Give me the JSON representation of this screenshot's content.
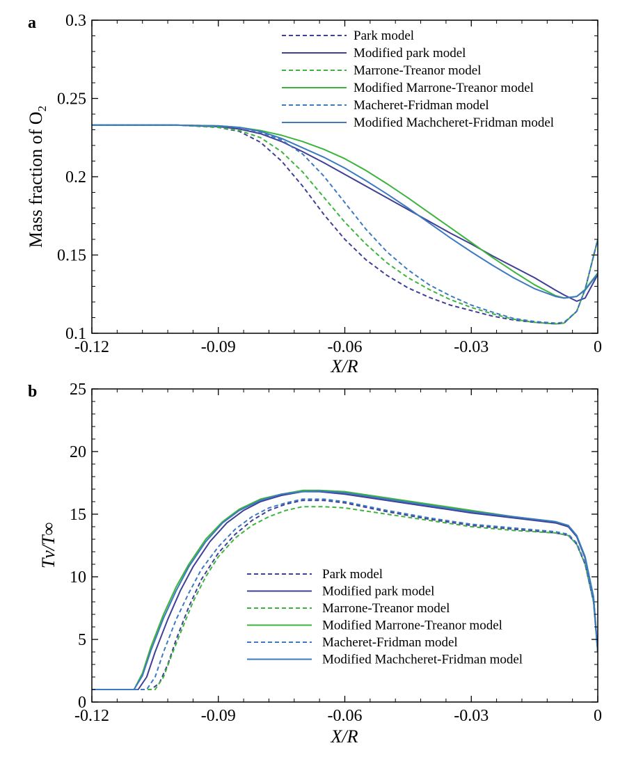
{
  "series_styles": [
    {
      "color": "#3f3f96",
      "dashed": true
    },
    {
      "color": "#3f3f96",
      "dashed": false
    },
    {
      "color": "#3cb43c",
      "dashed": true
    },
    {
      "color": "#3cb43c",
      "dashed": false
    },
    {
      "color": "#3d79c2",
      "dashed": true
    },
    {
      "color": "#3d79c2",
      "dashed": false
    }
  ],
  "chart_data": [
    {
      "type": "line",
      "panel": "a",
      "xlabel": "X/R",
      "ylabel": "Mass fraction of O",
      "ylabel_subscript": "2",
      "xlim": [
        -0.12,
        0
      ],
      "ylim": [
        0.1,
        0.3
      ],
      "xticks": [
        -0.12,
        -0.09,
        -0.06,
        -0.03,
        0
      ],
      "xtick_labels": [
        "-0.12",
        "-0.09",
        "-0.06",
        "-0.03",
        "0"
      ],
      "yticks": [
        0.1,
        0.15,
        0.2,
        0.25,
        0.3
      ],
      "ytick_labels": [
        "0.1",
        "0.15",
        "0.2",
        "0.25",
        "0.3"
      ],
      "grid": false,
      "legend_position": "top-right",
      "series": [
        {
          "name": "Park model",
          "x": [
            -0.12,
            -0.1,
            -0.09,
            -0.085,
            -0.08,
            -0.075,
            -0.07,
            -0.065,
            -0.06,
            -0.055,
            -0.05,
            -0.045,
            -0.04,
            -0.035,
            -0.03,
            -0.025,
            -0.02,
            -0.015,
            -0.01,
            -0.008,
            -0.005,
            -0.003,
            0
          ],
          "y": [
            0.233,
            0.233,
            0.2315,
            0.229,
            0.222,
            0.21,
            0.194,
            0.176,
            0.16,
            0.147,
            0.137,
            0.129,
            0.123,
            0.118,
            0.1145,
            0.111,
            0.1085,
            0.107,
            0.106,
            0.1065,
            0.114,
            0.128,
            0.16
          ]
        },
        {
          "name": "Modified park model",
          "x": [
            -0.12,
            -0.1,
            -0.09,
            -0.085,
            -0.08,
            -0.075,
            -0.07,
            -0.065,
            -0.06,
            -0.055,
            -0.05,
            -0.045,
            -0.04,
            -0.035,
            -0.03,
            -0.025,
            -0.02,
            -0.015,
            -0.01,
            -0.008,
            -0.005,
            -0.003,
            0
          ],
          "y": [
            0.233,
            0.233,
            0.232,
            0.2305,
            0.2275,
            0.2225,
            0.216,
            0.209,
            0.2015,
            0.194,
            0.1865,
            0.179,
            0.1715,
            0.164,
            0.157,
            0.1495,
            0.1425,
            0.1355,
            0.1275,
            0.1245,
            0.1205,
            0.1225,
            0.1375
          ]
        },
        {
          "name": "Marrone-Treanor model",
          "x": [
            -0.12,
            -0.1,
            -0.09,
            -0.085,
            -0.08,
            -0.075,
            -0.07,
            -0.065,
            -0.06,
            -0.055,
            -0.05,
            -0.045,
            -0.04,
            -0.035,
            -0.03,
            -0.025,
            -0.02,
            -0.015,
            -0.01,
            -0.008,
            -0.005,
            -0.003,
            0
          ],
          "y": [
            0.233,
            0.233,
            0.2315,
            0.2295,
            0.225,
            0.216,
            0.203,
            0.187,
            0.171,
            0.157,
            0.145,
            0.1355,
            0.128,
            0.1215,
            0.1165,
            0.1125,
            0.109,
            0.107,
            0.106,
            0.1065,
            0.114,
            0.128,
            0.16
          ]
        },
        {
          "name": "Modified Marrone-Treanor model",
          "x": [
            -0.12,
            -0.1,
            -0.09,
            -0.085,
            -0.08,
            -0.075,
            -0.07,
            -0.065,
            -0.06,
            -0.055,
            -0.05,
            -0.045,
            -0.04,
            -0.035,
            -0.03,
            -0.025,
            -0.02,
            -0.015,
            -0.01,
            -0.008,
            -0.005,
            -0.003,
            0
          ],
          "y": [
            0.233,
            0.233,
            0.2325,
            0.2315,
            0.2295,
            0.2265,
            0.2225,
            0.2175,
            0.2115,
            0.204,
            0.1955,
            0.1865,
            0.177,
            0.1675,
            0.158,
            0.1485,
            0.1395,
            0.131,
            0.124,
            0.1225,
            0.1235,
            0.128,
            0.1385
          ]
        },
        {
          "name": "Macheret-Fridman model",
          "x": [
            -0.12,
            -0.1,
            -0.09,
            -0.085,
            -0.08,
            -0.075,
            -0.07,
            -0.065,
            -0.06,
            -0.055,
            -0.05,
            -0.045,
            -0.04,
            -0.035,
            -0.03,
            -0.025,
            -0.02,
            -0.015,
            -0.01,
            -0.008,
            -0.005,
            -0.003,
            0
          ],
          "y": [
            0.233,
            0.233,
            0.2325,
            0.2315,
            0.2285,
            0.2235,
            0.2145,
            0.2005,
            0.1835,
            0.1665,
            0.152,
            0.1405,
            0.131,
            0.124,
            0.118,
            0.1135,
            0.1095,
            0.1075,
            0.1065,
            0.107,
            0.114,
            0.128,
            0.16
          ]
        },
        {
          "name": "Modified Machcheret-Fridman model",
          "x": [
            -0.12,
            -0.1,
            -0.09,
            -0.085,
            -0.08,
            -0.075,
            -0.07,
            -0.065,
            -0.06,
            -0.055,
            -0.05,
            -0.045,
            -0.04,
            -0.035,
            -0.03,
            -0.025,
            -0.02,
            -0.015,
            -0.01,
            -0.008,
            -0.005,
            -0.003,
            0
          ],
          "y": [
            0.233,
            0.233,
            0.2325,
            0.2315,
            0.229,
            0.2245,
            0.2185,
            0.2125,
            0.2055,
            0.1975,
            0.189,
            0.18,
            0.1705,
            0.161,
            0.152,
            0.1435,
            0.1355,
            0.1285,
            0.1235,
            0.1225,
            0.1235,
            0.1275,
            0.138
          ]
        }
      ]
    },
    {
      "type": "line",
      "panel": "b",
      "xlabel": "X/R",
      "ylabel": "Tv/T∞",
      "xlim": [
        -0.12,
        0
      ],
      "ylim": [
        0,
        25
      ],
      "xticks": [
        -0.12,
        -0.09,
        -0.06,
        -0.03,
        0
      ],
      "xtick_labels": [
        "-0.12",
        "-0.09",
        "-0.06",
        "-0.03",
        "0"
      ],
      "yticks": [
        0,
        5,
        10,
        15,
        20,
        25
      ],
      "ytick_labels": [
        "0",
        "5",
        "10",
        "15",
        "20",
        "25"
      ],
      "grid": false,
      "legend_position": "center-right",
      "series": [
        {
          "name": "Park model",
          "x": [
            -0.12,
            -0.106,
            -0.104,
            -0.102,
            -0.1,
            -0.097,
            -0.094,
            -0.09,
            -0.086,
            -0.082,
            -0.078,
            -0.074,
            -0.07,
            -0.065,
            -0.06,
            -0.05,
            -0.04,
            -0.03,
            -0.02,
            -0.01,
            -0.007,
            -0.005,
            -0.003,
            -0.001,
            0
          ],
          "y": [
            1,
            1,
            1.5,
            3,
            5,
            7.6,
            9.8,
            11.9,
            13.4,
            14.5,
            15.3,
            15.8,
            16.1,
            16.1,
            15.9,
            15.2,
            14.6,
            14.1,
            13.8,
            13.5,
            13.3,
            12.6,
            11,
            8,
            4
          ]
        },
        {
          "name": "Modified park model",
          "x": [
            -0.12,
            -0.109,
            -0.107,
            -0.105,
            -0.102,
            -0.099,
            -0.096,
            -0.092,
            -0.088,
            -0.084,
            -0.08,
            -0.075,
            -0.07,
            -0.066,
            -0.06,
            -0.05,
            -0.04,
            -0.03,
            -0.02,
            -0.01,
            -0.007,
            -0.005,
            -0.003,
            -0.001,
            0
          ],
          "y": [
            1,
            1,
            2,
            4,
            6.6,
            8.9,
            10.8,
            12.8,
            14.3,
            15.3,
            16,
            16.5,
            16.8,
            16.8,
            16.6,
            16.1,
            15.6,
            15.1,
            14.7,
            14.3,
            14,
            13.2,
            11.5,
            8.3,
            4
          ]
        },
        {
          "name": "Marrone-Treanor model",
          "x": [
            -0.12,
            -0.105,
            -0.103,
            -0.101,
            -0.099,
            -0.096,
            -0.093,
            -0.09,
            -0.086,
            -0.082,
            -0.078,
            -0.074,
            -0.07,
            -0.065,
            -0.06,
            -0.05,
            -0.04,
            -0.03,
            -0.02,
            -0.01,
            -0.007,
            -0.005,
            -0.003,
            -0.001,
            0
          ],
          "y": [
            1,
            1,
            2,
            3.8,
            5.5,
            8,
            10,
            11.6,
            13.1,
            14.1,
            14.8,
            15.3,
            15.6,
            15.6,
            15.5,
            15,
            14.5,
            14,
            13.7,
            13.5,
            13.3,
            12.6,
            11,
            8,
            4
          ]
        },
        {
          "name": "Modified Marrone-Treanor model",
          "x": [
            -0.12,
            -0.11,
            -0.108,
            -0.106,
            -0.103,
            -0.1,
            -0.097,
            -0.093,
            -0.089,
            -0.085,
            -0.08,
            -0.075,
            -0.07,
            -0.066,
            -0.06,
            -0.05,
            -0.04,
            -0.03,
            -0.02,
            -0.01,
            -0.007,
            -0.005,
            -0.003,
            -0.001,
            0
          ],
          "y": [
            1,
            1,
            2.3,
            4.4,
            7,
            9.2,
            11,
            13,
            14.4,
            15.4,
            16.2,
            16.6,
            16.9,
            16.9,
            16.8,
            16.3,
            15.8,
            15.3,
            14.8,
            14.4,
            14.1,
            13.3,
            11.6,
            8.4,
            4
          ]
        },
        {
          "name": "Macheret-Fridman model",
          "x": [
            -0.12,
            -0.107,
            -0.105,
            -0.103,
            -0.1,
            -0.097,
            -0.094,
            -0.09,
            -0.086,
            -0.082,
            -0.078,
            -0.074,
            -0.07,
            -0.065,
            -0.06,
            -0.05,
            -0.04,
            -0.03,
            -0.02,
            -0.01,
            -0.007,
            -0.005,
            -0.003,
            -0.001,
            0
          ],
          "y": [
            1,
            1,
            2,
            4,
            6.6,
            8.7,
            10.6,
            12.4,
            13.8,
            14.8,
            15.5,
            15.9,
            16.2,
            16.2,
            16,
            15.3,
            14.7,
            14.2,
            13.9,
            13.6,
            13.4,
            12.7,
            11.1,
            8.1,
            4
          ]
        },
        {
          "name": "Modified Machcheret-Fridman model",
          "x": [
            -0.12,
            -0.11,
            -0.108,
            -0.106,
            -0.103,
            -0.1,
            -0.097,
            -0.093,
            -0.089,
            -0.085,
            -0.08,
            -0.075,
            -0.07,
            -0.066,
            -0.06,
            -0.05,
            -0.04,
            -0.03,
            -0.02,
            -0.01,
            -0.007,
            -0.005,
            -0.003,
            -0.001,
            0
          ],
          "y": [
            1,
            1,
            2.1,
            4.1,
            6.7,
            8.9,
            10.8,
            12.8,
            14.3,
            15.3,
            16.1,
            16.6,
            16.8,
            16.85,
            16.7,
            16.2,
            15.7,
            15.2,
            14.8,
            14.4,
            14.1,
            13.3,
            11.6,
            8.4,
            4
          ]
        }
      ]
    }
  ]
}
